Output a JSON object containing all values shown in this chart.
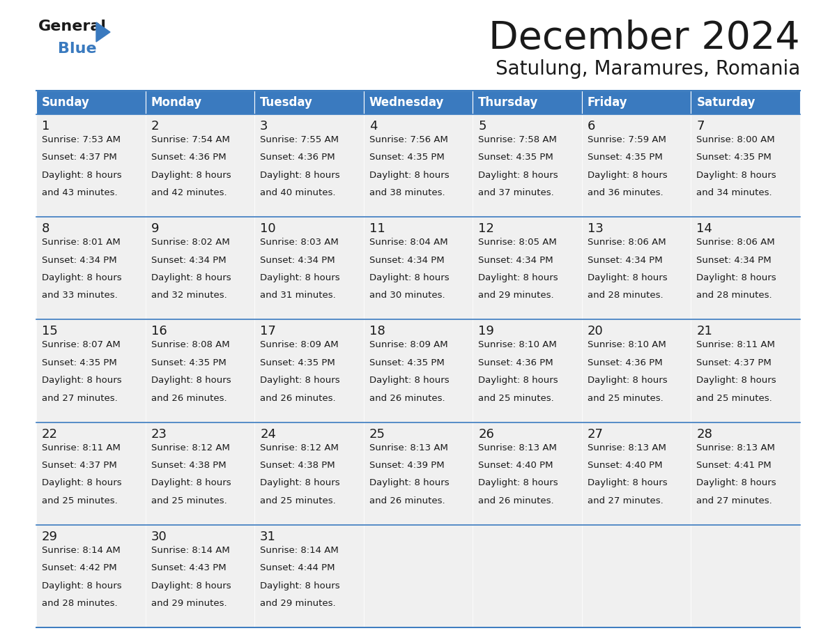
{
  "title": "December 2024",
  "subtitle": "Satulung, Maramures, Romania",
  "header_color": "#3a7abf",
  "header_text_color": "#ffffff",
  "cell_bg": "#f0f0f0",
  "cell_bg_empty": "#f0f0f0",
  "border_color": "#3a7abf",
  "days_of_week": [
    "Sunday",
    "Monday",
    "Tuesday",
    "Wednesday",
    "Thursday",
    "Friday",
    "Saturday"
  ],
  "weeks": [
    [
      {
        "day": 1,
        "sunrise": "7:53 AM",
        "sunset": "4:37 PM",
        "daylight_hours": 8,
        "daylight_mins": 43
      },
      {
        "day": 2,
        "sunrise": "7:54 AM",
        "sunset": "4:36 PM",
        "daylight_hours": 8,
        "daylight_mins": 42
      },
      {
        "day": 3,
        "sunrise": "7:55 AM",
        "sunset": "4:36 PM",
        "daylight_hours": 8,
        "daylight_mins": 40
      },
      {
        "day": 4,
        "sunrise": "7:56 AM",
        "sunset": "4:35 PM",
        "daylight_hours": 8,
        "daylight_mins": 38
      },
      {
        "day": 5,
        "sunrise": "7:58 AM",
        "sunset": "4:35 PM",
        "daylight_hours": 8,
        "daylight_mins": 37
      },
      {
        "day": 6,
        "sunrise": "7:59 AM",
        "sunset": "4:35 PM",
        "daylight_hours": 8,
        "daylight_mins": 36
      },
      {
        "day": 7,
        "sunrise": "8:00 AM",
        "sunset": "4:35 PM",
        "daylight_hours": 8,
        "daylight_mins": 34
      }
    ],
    [
      {
        "day": 8,
        "sunrise": "8:01 AM",
        "sunset": "4:34 PM",
        "daylight_hours": 8,
        "daylight_mins": 33
      },
      {
        "day": 9,
        "sunrise": "8:02 AM",
        "sunset": "4:34 PM",
        "daylight_hours": 8,
        "daylight_mins": 32
      },
      {
        "day": 10,
        "sunrise": "8:03 AM",
        "sunset": "4:34 PM",
        "daylight_hours": 8,
        "daylight_mins": 31
      },
      {
        "day": 11,
        "sunrise": "8:04 AM",
        "sunset": "4:34 PM",
        "daylight_hours": 8,
        "daylight_mins": 30
      },
      {
        "day": 12,
        "sunrise": "8:05 AM",
        "sunset": "4:34 PM",
        "daylight_hours": 8,
        "daylight_mins": 29
      },
      {
        "day": 13,
        "sunrise": "8:06 AM",
        "sunset": "4:34 PM",
        "daylight_hours": 8,
        "daylight_mins": 28
      },
      {
        "day": 14,
        "sunrise": "8:06 AM",
        "sunset": "4:34 PM",
        "daylight_hours": 8,
        "daylight_mins": 28
      }
    ],
    [
      {
        "day": 15,
        "sunrise": "8:07 AM",
        "sunset": "4:35 PM",
        "daylight_hours": 8,
        "daylight_mins": 27
      },
      {
        "day": 16,
        "sunrise": "8:08 AM",
        "sunset": "4:35 PM",
        "daylight_hours": 8,
        "daylight_mins": 26
      },
      {
        "day": 17,
        "sunrise": "8:09 AM",
        "sunset": "4:35 PM",
        "daylight_hours": 8,
        "daylight_mins": 26
      },
      {
        "day": 18,
        "sunrise": "8:09 AM",
        "sunset": "4:35 PM",
        "daylight_hours": 8,
        "daylight_mins": 26
      },
      {
        "day": 19,
        "sunrise": "8:10 AM",
        "sunset": "4:36 PM",
        "daylight_hours": 8,
        "daylight_mins": 25
      },
      {
        "day": 20,
        "sunrise": "8:10 AM",
        "sunset": "4:36 PM",
        "daylight_hours": 8,
        "daylight_mins": 25
      },
      {
        "day": 21,
        "sunrise": "8:11 AM",
        "sunset": "4:37 PM",
        "daylight_hours": 8,
        "daylight_mins": 25
      }
    ],
    [
      {
        "day": 22,
        "sunrise": "8:11 AM",
        "sunset": "4:37 PM",
        "daylight_hours": 8,
        "daylight_mins": 25
      },
      {
        "day": 23,
        "sunrise": "8:12 AM",
        "sunset": "4:38 PM",
        "daylight_hours": 8,
        "daylight_mins": 25
      },
      {
        "day": 24,
        "sunrise": "8:12 AM",
        "sunset": "4:38 PM",
        "daylight_hours": 8,
        "daylight_mins": 25
      },
      {
        "day": 25,
        "sunrise": "8:13 AM",
        "sunset": "4:39 PM",
        "daylight_hours": 8,
        "daylight_mins": 26
      },
      {
        "day": 26,
        "sunrise": "8:13 AM",
        "sunset": "4:40 PM",
        "daylight_hours": 8,
        "daylight_mins": 26
      },
      {
        "day": 27,
        "sunrise": "8:13 AM",
        "sunset": "4:40 PM",
        "daylight_hours": 8,
        "daylight_mins": 27
      },
      {
        "day": 28,
        "sunrise": "8:13 AM",
        "sunset": "4:41 PM",
        "daylight_hours": 8,
        "daylight_mins": 27
      }
    ],
    [
      {
        "day": 29,
        "sunrise": "8:14 AM",
        "sunset": "4:42 PM",
        "daylight_hours": 8,
        "daylight_mins": 28
      },
      {
        "day": 30,
        "sunrise": "8:14 AM",
        "sunset": "4:43 PM",
        "daylight_hours": 8,
        "daylight_mins": 29
      },
      {
        "day": 31,
        "sunrise": "8:14 AM",
        "sunset": "4:44 PM",
        "daylight_hours": 8,
        "daylight_mins": 29
      },
      null,
      null,
      null,
      null
    ]
  ],
  "logo_color1": "#1a1a1a",
  "logo_color2": "#3a7abf",
  "logo_triangle_color": "#3a7abf",
  "title_fontsize": 40,
  "subtitle_fontsize": 20,
  "header_fontsize": 12,
  "day_num_fontsize": 13,
  "cell_text_fontsize": 9.5
}
